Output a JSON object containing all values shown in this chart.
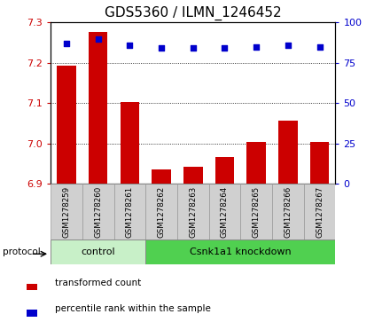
{
  "title": "GDS5360 / ILMN_1246452",
  "samples": [
    "GSM1278259",
    "GSM1278260",
    "GSM1278261",
    "GSM1278262",
    "GSM1278263",
    "GSM1278264",
    "GSM1278265",
    "GSM1278266",
    "GSM1278267"
  ],
  "bar_values": [
    7.192,
    7.276,
    7.102,
    6.935,
    6.942,
    6.967,
    7.003,
    7.057,
    7.003
  ],
  "percentile_values": [
    87,
    90,
    86,
    84,
    84,
    84,
    85,
    86,
    85
  ],
  "bar_color": "#CC0000",
  "dot_color": "#0000CC",
  "ylim_left": [
    6.9,
    7.3
  ],
  "ylim_right": [
    0,
    100
  ],
  "yticks_left": [
    6.9,
    7.0,
    7.1,
    7.2,
    7.3
  ],
  "yticks_right": [
    0,
    25,
    50,
    75,
    100
  ],
  "grid_values": [
    7.0,
    7.1,
    7.2
  ],
  "control_samples": 3,
  "group_labels": [
    "control",
    "Csnk1a1 knockdown"
  ],
  "group_color_ctrl": "#c8f0c8",
  "group_color_knock": "#50d050",
  "protocol_label": "protocol",
  "legend_bar_label": "transformed count",
  "legend_dot_label": "percentile rank within the sample",
  "title_fontsize": 11,
  "xtick_gray": "#d0d0d0"
}
